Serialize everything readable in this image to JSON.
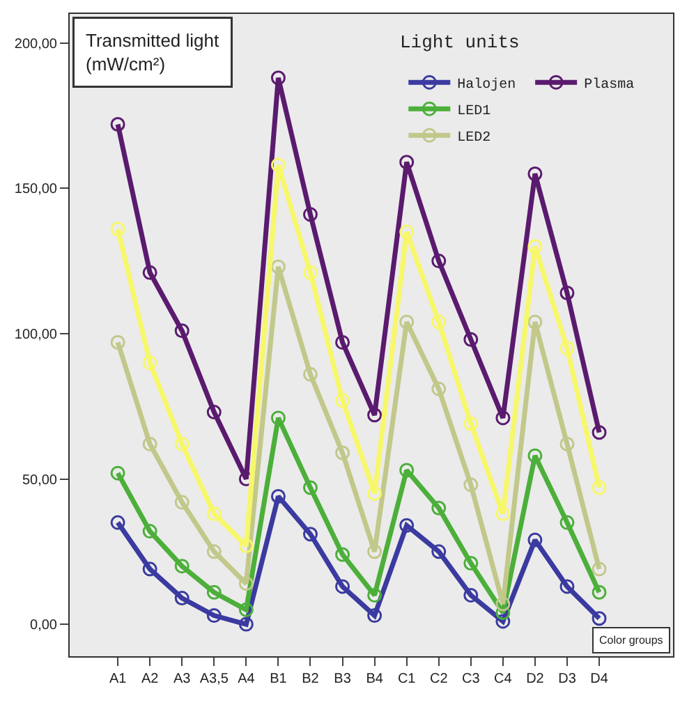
{
  "chart_data": {
    "type": "line",
    "ylabel": "Transmitted light (mW/cm²)",
    "legend_title": "Light units",
    "categories": [
      "A1",
      "A2",
      "A3",
      "A3,5",
      "A4",
      "B1",
      "B2",
      "B3",
      "B4",
      "C1",
      "C2",
      "C3",
      "C4",
      "D2",
      "D3",
      "D4"
    ],
    "series": [
      {
        "name": "Halojen",
        "color": "#3a3aa0",
        "values": [
          35,
          19,
          9,
          3,
          0,
          44,
          31,
          13,
          3,
          34,
          25,
          10,
          1,
          29,
          13,
          2
        ]
      },
      {
        "name": "LED1",
        "color": "#4caf3a",
        "values": [
          52,
          32,
          20,
          11,
          5,
          71,
          47,
          24,
          10,
          53,
          40,
          21,
          4,
          58,
          35,
          11
        ]
      },
      {
        "name": "LED2",
        "color": "#c2c88a",
        "values": [
          97,
          62,
          42,
          25,
          14,
          123,
          86,
          59,
          25,
          104,
          81,
          48,
          7,
          104,
          62,
          19
        ]
      },
      {
        "name": "Plasma",
        "color": "#5a1a6e",
        "values": [
          172,
          121,
          101,
          73,
          50,
          188,
          141,
          97,
          72,
          159,
          125,
          98,
          71,
          155,
          114,
          66
        ]
      },
      {
        "color": "#f7f76a",
        "values": [
          136,
          90,
          62,
          38,
          27,
          158,
          121,
          77,
          45,
          135,
          104,
          69,
          38,
          130,
          95,
          47
        ]
      }
    ],
    "ylim": [
      -11,
      210
    ],
    "yticks": [
      {
        "value": 0,
        "label": "0,00"
      },
      {
        "value": 50,
        "label": "50,00"
      },
      {
        "value": 100,
        "label": "100,00"
      },
      {
        "value": 150,
        "label": "150,00"
      },
      {
        "value": 200,
        "label": "200,00"
      }
    ],
    "annotations": [
      "Color groups"
    ],
    "marker": "circle",
    "line_style": "solid",
    "grid": false,
    "legend": "top right"
  }
}
